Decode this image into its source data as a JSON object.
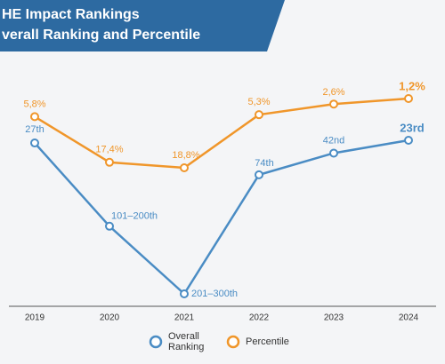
{
  "chart_data": {
    "type": "line",
    "title": [
      "HE Impact Rankings",
      "verall Ranking and Percentile"
    ],
    "categories": [
      "2019",
      "2020",
      "2021",
      "2022",
      "2023",
      "2024"
    ],
    "series": [
      {
        "name": "Overall Ranking",
        "color": "#4a8cc4",
        "values": [
          27,
          150,
          250,
          74,
          42,
          23
        ],
        "value_labels": [
          "27th",
          "101–200th",
          "201–300th",
          "74th",
          "42nd",
          "23rd"
        ]
      },
      {
        "name": "Percentile",
        "color": "#f0962a",
        "values": [
          5.8,
          17.4,
          18.8,
          5.3,
          2.6,
          1.2
        ],
        "value_labels": [
          "5,8%",
          "17,4%",
          "18,8%",
          "5,3%",
          "2,6%",
          "1,2%"
        ]
      }
    ]
  }
}
